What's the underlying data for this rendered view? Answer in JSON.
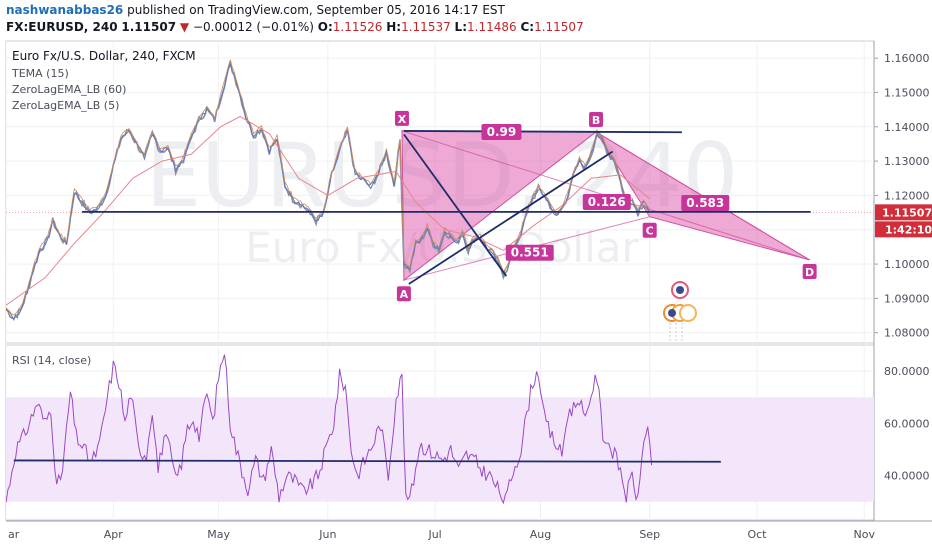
{
  "header": {
    "author": "nashwanabbas26",
    "published_text": "published on TradingView.com, September 05, 2016 14:17 EST",
    "symbol": "FX:EURUSD, 240",
    "last": "1.11507",
    "change": "−0.00012 (−0.01%)",
    "open_label": "O:",
    "open": "1.11526",
    "high_label": "H:",
    "high": "1.11537",
    "low_label": "L:",
    "low": "1.11486",
    "close_label": "C:",
    "close": "1.11507"
  },
  "chart_data": {
    "type": "line",
    "title": "Euro Fx/U.S. Dollar, 240, FXCM",
    "watermark_symbol": "EURUSD, 240",
    "watermark_desc": "Euro Fx/U.S. Dollar",
    "indicators": [
      "TEMA (15)",
      "ZeroLagEMA_LB (60)",
      "ZeroLagEMA_LB (5)"
    ],
    "price_axis": {
      "range": [
        1.077,
        1.165
      ],
      "ticks": [
        "1.16000",
        "1.15000",
        "1.14000",
        "1.13000",
        "1.12000",
        "1.11000",
        "1.10000",
        "1.09000",
        "1.08000"
      ],
      "tick_values": [
        1.16,
        1.15,
        1.14,
        1.13,
        1.12,
        1.11,
        1.1,
        1.09,
        1.08
      ]
    },
    "price_badge": "1.11507",
    "time_badge": "1:42:10",
    "x_axis": {
      "months": [
        "ar",
        "Apr",
        "May",
        "Jun",
        "Jul",
        "Aug",
        "Sep",
        "Oct",
        "Nov"
      ],
      "month_bar_index": [
        0,
        110,
        218,
        330,
        440,
        548,
        660,
        770,
        880
      ]
    },
    "harmonic": {
      "points": {
        "X": {
          "label": "X",
          "bar": 406,
          "price": 1.1388
        },
        "A": {
          "label": "A",
          "bar": 408,
          "price": 1.0953
        },
        "B": {
          "label": "B",
          "bar": 605,
          "price": 1.1385
        },
        "C": {
          "label": "C",
          "bar": 660,
          "price": 1.1138
        },
        "D": {
          "label": "D",
          "bar": 824,
          "price": 1.1012
        }
      },
      "ratios": [
        {
          "text": "0.99",
          "bar": 508,
          "price": 1.1385
        },
        {
          "text": "0.551",
          "bar": 537,
          "price": 1.1033
        },
        {
          "text": "0.126",
          "bar": 616,
          "price": 1.1181
        },
        {
          "text": "0.583",
          "bar": 717,
          "price": 1.1178
        }
      ]
    },
    "trendlines": [
      {
        "from": {
          "bar": 78,
          "price": 1.1152
        },
        "to": {
          "bar": 825,
          "price": 1.1152
        }
      },
      {
        "from": {
          "bar": 408,
          "price": 1.1388
        },
        "to": {
          "bar": 693,
          "price": 1.1384
        }
      },
      {
        "from": {
          "bar": 408,
          "price": 1.1378
        },
        "to": {
          "bar": 513,
          "price": 1.0965
        }
      },
      {
        "from": {
          "bar": 413,
          "price": 1.0942
        },
        "to": {
          "bar": 622,
          "price": 1.1328
        }
      }
    ],
    "price_series": [
      [
        0,
        1.0868
      ],
      [
        8,
        1.0842
      ],
      [
        15,
        1.0865
      ],
      [
        22,
        1.092
      ],
      [
        28,
        1.0985
      ],
      [
        35,
        1.104
      ],
      [
        42,
        1.1068
      ],
      [
        48,
        1.1125
      ],
      [
        55,
        1.1082
      ],
      [
        62,
        1.1058
      ],
      [
        70,
        1.121
      ],
      [
        78,
        1.118
      ],
      [
        86,
        1.115
      ],
      [
        94,
        1.1162
      ],
      [
        102,
        1.1198
      ],
      [
        110,
        1.1285
      ],
      [
        118,
        1.1365
      ],
      [
        126,
        1.139
      ],
      [
        134,
        1.135
      ],
      [
        142,
        1.131
      ],
      [
        150,
        1.138
      ],
      [
        158,
        1.133
      ],
      [
        166,
        1.1335
      ],
      [
        174,
        1.1275
      ],
      [
        182,
        1.1305
      ],
      [
        190,
        1.137
      ],
      [
        198,
        1.142
      ],
      [
        206,
        1.145
      ],
      [
        214,
        1.142
      ],
      [
        222,
        1.1505
      ],
      [
        230,
        1.1585
      ],
      [
        238,
        1.1515
      ],
      [
        246,
        1.143
      ],
      [
        254,
        1.1375
      ],
      [
        262,
        1.1395
      ],
      [
        270,
        1.133
      ],
      [
        278,
        1.1365
      ],
      [
        286,
        1.123
      ],
      [
        294,
        1.119
      ],
      [
        302,
        1.1175
      ],
      [
        310,
        1.1155
      ],
      [
        318,
        1.1125
      ],
      [
        326,
        1.115
      ],
      [
        334,
        1.126
      ],
      [
        342,
        1.133
      ],
      [
        350,
        1.139
      ],
      [
        358,
        1.1265
      ],
      [
        366,
        1.1245
      ],
      [
        374,
        1.1225
      ],
      [
        382,
        1.1265
      ],
      [
        390,
        1.1325
      ],
      [
        398,
        1.123
      ],
      [
        404,
        1.136
      ],
      [
        408,
        1.1
      ],
      [
        414,
        1.0985
      ],
      [
        420,
        1.106
      ],
      [
        426,
        1.107
      ],
      [
        432,
        1.1105
      ],
      [
        438,
        1.106
      ],
      [
        444,
        1.104
      ],
      [
        450,
        1.1095
      ],
      [
        456,
        1.108
      ],
      [
        462,
        1.106
      ],
      [
        468,
        1.109
      ],
      [
        474,
        1.104
      ],
      [
        480,
        1.1075
      ],
      [
        486,
        1.108
      ],
      [
        492,
        1.105
      ],
      [
        498,
        1.1035
      ],
      [
        504,
        1.101
      ],
      [
        510,
        1.097
      ],
      [
        516,
        1.1
      ],
      [
        522,
        1.105
      ],
      [
        528,
        1.109
      ],
      [
        534,
        1.115
      ],
      [
        540,
        1.119
      ],
      [
        546,
        1.122
      ],
      [
        552,
        1.12
      ],
      [
        558,
        1.117
      ],
      [
        564,
        1.114
      ],
      [
        570,
        1.116
      ],
      [
        576,
        1.12
      ],
      [
        582,
        1.126
      ],
      [
        588,
        1.13
      ],
      [
        594,
        1.128
      ],
      [
        600,
        1.132
      ],
      [
        606,
        1.138
      ],
      [
        612,
        1.136
      ],
      [
        618,
        1.132
      ],
      [
        624,
        1.13
      ],
      [
        630,
        1.124
      ],
      [
        636,
        1.1175
      ],
      [
        642,
        1.1185
      ],
      [
        648,
        1.115
      ],
      [
        654,
        1.118
      ],
      [
        660,
        1.115
      ]
    ],
    "ema60_series": [
      [
        0,
        1.088
      ],
      [
        40,
        1.096
      ],
      [
        70,
        1.106
      ],
      [
        100,
        1.115
      ],
      [
        130,
        1.125
      ],
      [
        160,
        1.13
      ],
      [
        190,
        1.132
      ],
      [
        220,
        1.14
      ],
      [
        240,
        1.143
      ],
      [
        270,
        1.138
      ],
      [
        300,
        1.125
      ],
      [
        330,
        1.12
      ],
      [
        360,
        1.125
      ],
      [
        400,
        1.127
      ],
      [
        420,
        1.118
      ],
      [
        450,
        1.11
      ],
      [
        480,
        1.108
      ],
      [
        510,
        1.104
      ],
      [
        540,
        1.111
      ],
      [
        570,
        1.117
      ],
      [
        600,
        1.125
      ],
      [
        630,
        1.126
      ],
      [
        660,
        1.119
      ]
    ],
    "rsi": {
      "label": "RSI (14, close)",
      "range": [
        23,
        90
      ],
      "ticks": [
        "80.0000",
        "60.0000",
        "40.0000"
      ],
      "tick_values": [
        80,
        60,
        40
      ],
      "band": [
        30,
        70
      ],
      "trendline": {
        "from": {
          "bar": 8,
          "value": 45.8
        },
        "to": {
          "bar": 733,
          "value": 45.3
        }
      },
      "series": [
        [
          0,
          30
        ],
        [
          10,
          50
        ],
        [
          18,
          55
        ],
        [
          26,
          62
        ],
        [
          32,
          68
        ],
        [
          40,
          60
        ],
        [
          46,
          66
        ],
        [
          52,
          35
        ],
        [
          58,
          42
        ],
        [
          66,
          72
        ],
        [
          72,
          55
        ],
        [
          80,
          50
        ],
        [
          88,
          45
        ],
        [
          96,
          52
        ],
        [
          104,
          70
        ],
        [
          110,
          82
        ],
        [
          116,
          76
        ],
        [
          122,
          60
        ],
        [
          128,
          72
        ],
        [
          136,
          50
        ],
        [
          144,
          48
        ],
        [
          150,
          66
        ],
        [
          156,
          42
        ],
        [
          162,
          55
        ],
        [
          168,
          50
        ],
        [
          174,
          38
        ],
        [
          180,
          45
        ],
        [
          186,
          58
        ],
        [
          192,
          62
        ],
        [
          198,
          55
        ],
        [
          206,
          72
        ],
        [
          212,
          60
        ],
        [
          218,
          78
        ],
        [
          224,
          88
        ],
        [
          230,
          60
        ],
        [
          236,
          50
        ],
        [
          242,
          42
        ],
        [
          248,
          35
        ],
        [
          256,
          46
        ],
        [
          264,
          38
        ],
        [
          272,
          50
        ],
        [
          280,
          32
        ],
        [
          288,
          40
        ],
        [
          296,
          38
        ],
        [
          304,
          34
        ],
        [
          312,
          36
        ],
        [
          320,
          40
        ],
        [
          328,
          50
        ],
        [
          336,
          60
        ],
        [
          342,
          78
        ],
        [
          348,
          74
        ],
        [
          354,
          50
        ],
        [
          360,
          40
        ],
        [
          368,
          46
        ],
        [
          376,
          52
        ],
        [
          384,
          60
        ],
        [
          392,
          40
        ],
        [
          400,
          70
        ],
        [
          406,
          78
        ],
        [
          410,
          30
        ],
        [
          416,
          34
        ],
        [
          424,
          52
        ],
        [
          432,
          50
        ],
        [
          440,
          48
        ],
        [
          448,
          46
        ],
        [
          456,
          50
        ],
        [
          464,
          42
        ],
        [
          472,
          48
        ],
        [
          480,
          46
        ],
        [
          488,
          42
        ],
        [
          496,
          40
        ],
        [
          504,
          35
        ],
        [
          512,
          30
        ],
        [
          520,
          42
        ],
        [
          528,
          50
        ],
        [
          534,
          64
        ],
        [
          540,
          76
        ],
        [
          546,
          80
        ],
        [
          552,
          62
        ],
        [
          558,
          56
        ],
        [
          564,
          52
        ],
        [
          570,
          48
        ],
        [
          576,
          64
        ],
        [
          582,
          66
        ],
        [
          588,
          70
        ],
        [
          594,
          60
        ],
        [
          600,
          72
        ],
        [
          606,
          78
        ],
        [
          612,
          56
        ],
        [
          618,
          52
        ],
        [
          624,
          48
        ],
        [
          630,
          42
        ],
        [
          636,
          32
        ],
        [
          642,
          40
        ],
        [
          648,
          30
        ],
        [
          654,
          55
        ],
        [
          658,
          58
        ],
        [
          662,
          44
        ]
      ]
    }
  }
}
